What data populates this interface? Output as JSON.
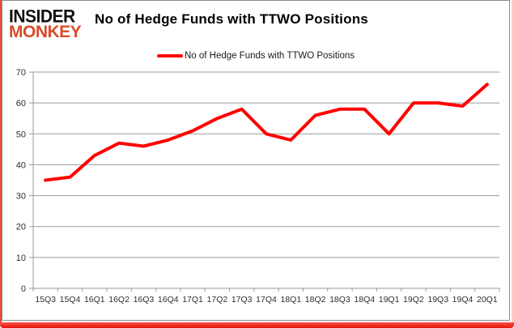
{
  "branding": {
    "logo_line1": "INSIDER",
    "logo_line2": "MONKEY",
    "logo_color2": "#d94b28"
  },
  "header": {
    "title": "No of Hedge Funds with TTWO Positions"
  },
  "legend": {
    "label": "No of Hedge Funds with TTWO Positions",
    "swatch_color": "#ff0000"
  },
  "frame": {
    "accent_color": "#e6493a",
    "bottom_bar_color": "#ed1c10"
  },
  "chart_data": {
    "type": "line",
    "title": "No of Hedge Funds with TTWO Positions",
    "categories": [
      "15Q3",
      "15Q4",
      "16Q1",
      "16Q2",
      "16Q3",
      "16Q4",
      "17Q1",
      "17Q2",
      "17Q3",
      "17Q4",
      "18Q1",
      "18Q2",
      "18Q3",
      "18Q4",
      "19Q1",
      "19Q2",
      "19Q3",
      "19Q4",
      "20Q1"
    ],
    "series": [
      {
        "name": "No of Hedge Funds with TTWO Positions",
        "color": "#ff0000",
        "values": [
          35,
          36,
          43,
          47,
          46,
          48,
          51,
          55,
          58,
          50,
          48,
          56,
          58,
          58,
          50,
          60,
          60,
          59,
          66
        ]
      }
    ],
    "xlabel": "",
    "ylabel": "",
    "ylim": [
      0,
      70
    ],
    "yticks": [
      0,
      10,
      20,
      30,
      40,
      50,
      60,
      70
    ],
    "grid": "horizontal",
    "gridline_color": "#9a9a9a",
    "axis_color": "#9a9a9a",
    "legend_position": "top-center",
    "line_width": 4
  }
}
